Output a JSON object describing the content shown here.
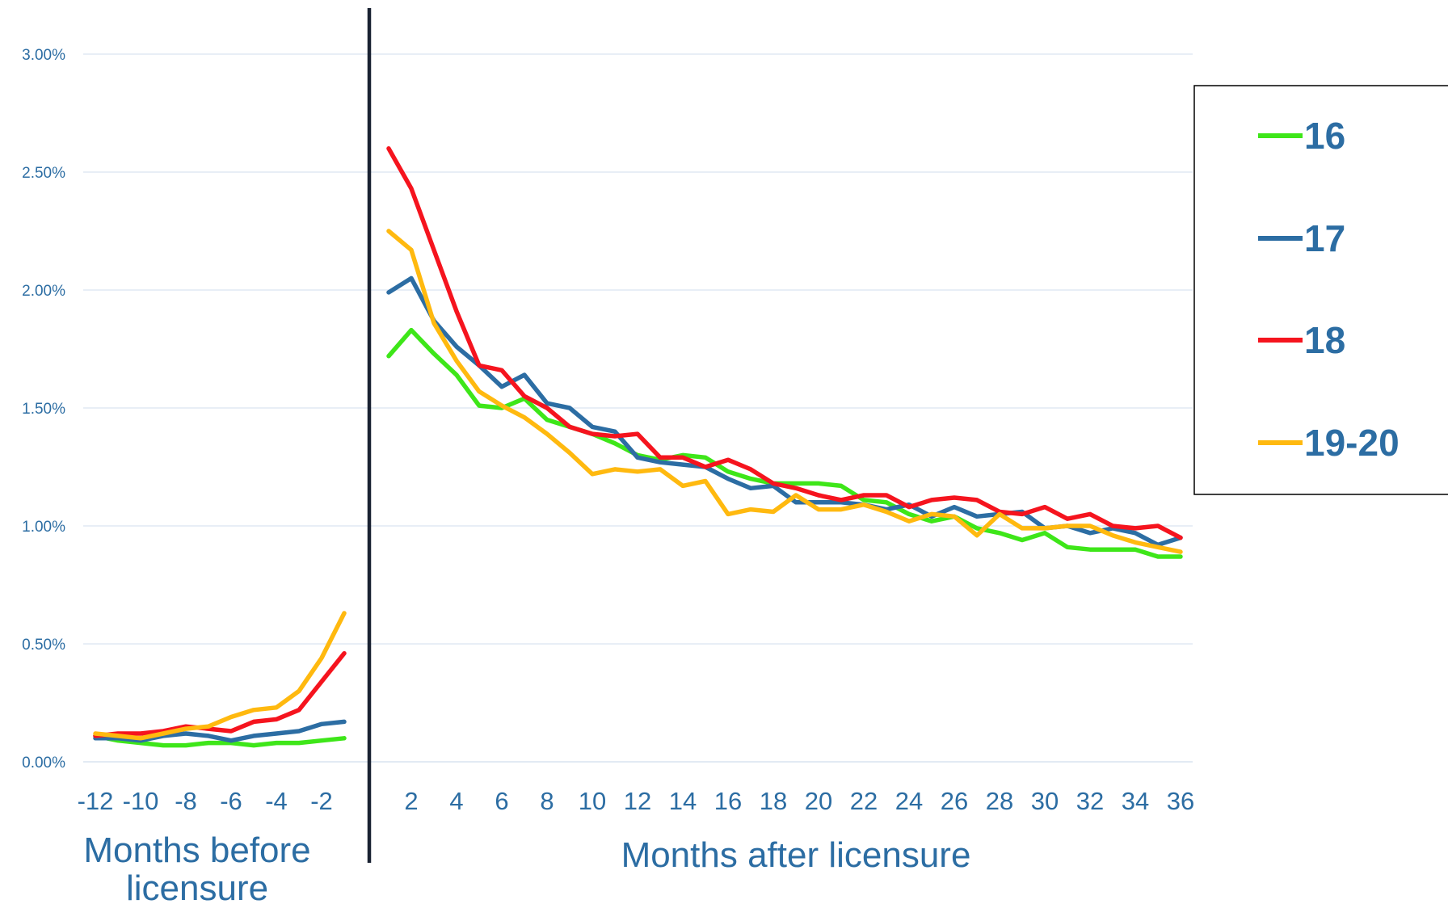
{
  "chart_data": {
    "type": "line",
    "xlabel_before": "Months before licensure",
    "xlabel_after": "Months after licensure",
    "yaxis": {
      "min": 0,
      "max": 3,
      "ticks": [
        0,
        0.5,
        1,
        1.5,
        2,
        2.5,
        3
      ],
      "tick_labels": [
        "0.00%",
        "0.50%",
        "1.00%",
        "1.50%",
        "2.00%",
        "2.50%",
        "3.00%"
      ]
    },
    "xaxis_before": {
      "range": [
        -12,
        -1
      ],
      "ticks": [
        -12,
        -10,
        -8,
        -6,
        -4,
        -2
      ],
      "tick_labels": [
        "-12",
        "-10",
        "-8",
        "-6",
        "-4",
        "-2"
      ]
    },
    "xaxis_after": {
      "range": [
        1,
        36
      ],
      "ticks": [
        2,
        4,
        6,
        8,
        10,
        12,
        14,
        16,
        18,
        20,
        22,
        24,
        26,
        28,
        30,
        32,
        34,
        36
      ],
      "tick_labels": [
        "2",
        "4",
        "6",
        "8",
        "10",
        "12",
        "14",
        "16",
        "18",
        "20",
        "22",
        "24",
        "26",
        "28",
        "30",
        "32",
        "34",
        "36"
      ]
    },
    "grid": true,
    "legend": {
      "placement": "right"
    },
    "series": [
      {
        "name": "16",
        "color": "#3ee619",
        "before": [
          0.11,
          0.09,
          0.08,
          0.07,
          0.07,
          0.08,
          0.08,
          0.07,
          0.08,
          0.08,
          0.09,
          0.1
        ],
        "after": [
          1.72,
          1.83,
          1.73,
          1.64,
          1.51,
          1.5,
          1.54,
          1.45,
          1.42,
          1.39,
          1.35,
          1.3,
          1.28,
          1.3,
          1.29,
          1.23,
          1.2,
          1.18,
          1.18,
          1.18,
          1.17,
          1.11,
          1.1,
          1.05,
          1.02,
          1.04,
          0.99,
          0.97,
          0.94,
          0.97,
          0.91,
          0.9,
          0.9,
          0.9,
          0.87,
          0.87
        ]
      },
      {
        "name": "17",
        "color": "#2c6da3",
        "before": [
          0.1,
          0.1,
          0.09,
          0.11,
          0.12,
          0.11,
          0.09,
          0.11,
          0.12,
          0.13,
          0.16,
          0.17
        ],
        "after": [
          1.99,
          2.05,
          1.87,
          1.76,
          1.68,
          1.59,
          1.64,
          1.52,
          1.5,
          1.42,
          1.4,
          1.29,
          1.27,
          1.26,
          1.25,
          1.2,
          1.16,
          1.17,
          1.1,
          1.1,
          1.1,
          1.09,
          1.07,
          1.09,
          1.04,
          1.08,
          1.04,
          1.05,
          1.06,
          0.99,
          1.0,
          0.97,
          0.99,
          0.97,
          0.92,
          0.95
        ]
      },
      {
        "name": "18",
        "color": "#f5141e",
        "before": [
          0.11,
          0.12,
          0.12,
          0.13,
          0.15,
          0.14,
          0.13,
          0.17,
          0.18,
          0.22,
          0.34,
          0.46
        ],
        "after": [
          2.6,
          2.43,
          2.17,
          1.91,
          1.68,
          1.66,
          1.55,
          1.5,
          1.42,
          1.39,
          1.38,
          1.39,
          1.29,
          1.29,
          1.25,
          1.28,
          1.24,
          1.18,
          1.16,
          1.13,
          1.11,
          1.13,
          1.13,
          1.08,
          1.11,
          1.12,
          1.11,
          1.06,
          1.05,
          1.08,
          1.03,
          1.05,
          1.0,
          0.99,
          1.0,
          0.95
        ]
      },
      {
        "name": "19-20",
        "color": "#ffb90f",
        "before": [
          0.12,
          0.11,
          0.1,
          0.12,
          0.14,
          0.15,
          0.19,
          0.22,
          0.23,
          0.3,
          0.44,
          0.63
        ],
        "after": [
          2.25,
          2.17,
          1.86,
          1.7,
          1.57,
          1.51,
          1.46,
          1.39,
          1.31,
          1.22,
          1.24,
          1.23,
          1.24,
          1.17,
          1.19,
          1.05,
          1.07,
          1.06,
          1.13,
          1.07,
          1.07,
          1.09,
          1.06,
          1.02,
          1.05,
          1.04,
          0.96,
          1.05,
          0.99,
          0.99,
          1.0,
          1.0,
          0.96,
          0.93,
          0.91,
          0.89
        ]
      }
    ]
  }
}
